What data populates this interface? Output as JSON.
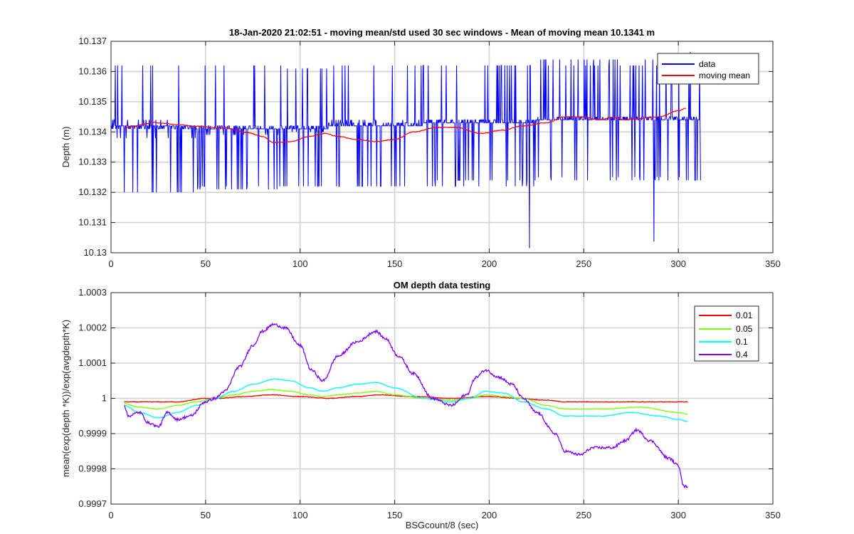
{
  "chart_data": [
    {
      "type": "line",
      "title": "18-Jan-2020 21:02:51 - moving mean/std used 30 sec windows - Mean of moving mean 10.1341 m",
      "xlabel": "",
      "ylabel": "Depth (m)",
      "xlim": [
        0,
        350
      ],
      "ylim": [
        10.13,
        10.137
      ],
      "xticks": [
        0,
        50,
        100,
        150,
        200,
        250,
        300,
        350
      ],
      "xtick_labels": [
        "0",
        "50",
        "100",
        "150",
        "200",
        "250",
        "300",
        "350"
      ],
      "yticks": [
        10.13,
        10.131,
        10.132,
        10.133,
        10.134,
        10.135,
        10.136,
        10.137
      ],
      "ytick_labels": [
        "10.13",
        "10.131",
        "10.132",
        "10.133",
        "10.134",
        "10.135",
        "10.136",
        "10.137"
      ],
      "grid": true,
      "legend_position": "top-right",
      "series": [
        {
          "name": "data",
          "color": "#0000ff",
          "style": "noisy",
          "x_range": [
            0,
            312
          ],
          "segments": [
            {
              "x": [
                0,
                22
              ],
              "levels": [
                10.1342,
                10.1341,
                10.1362,
                10.132,
                10.1344,
                10.1338
              ],
              "lo": 10.1319,
              "hi": 10.1363
            },
            {
              "x": [
                22,
                45
              ],
              "levels": [
                10.1342,
                10.1341,
                10.1362,
                10.132,
                10.1344,
                10.1338
              ],
              "lo": 10.1319,
              "hi": 10.1363
            },
            {
              "x": [
                45,
                90
              ],
              "levels": [
                10.1341,
                10.1342,
                10.1362,
                10.1321,
                10.1322,
                10.1339
              ],
              "lo": 10.1319,
              "hi": 10.1362
            },
            {
              "x": [
                90,
                115
              ],
              "levels": [
                10.1341,
                10.1342,
                10.1322,
                10.1361,
                10.134
              ],
              "lo": 10.1321,
              "hi": 10.1362
            },
            {
              "x": [
                115,
                165
              ],
              "levels": [
                10.1342,
                10.1343,
                10.1322,
                10.1362,
                10.1344
              ],
              "lo": 10.1321,
              "hi": 10.1362
            },
            {
              "x": [
                165,
                225
              ],
              "levels": [
                10.1343,
                10.1344,
                10.1322,
                10.1362,
                10.1324
              ],
              "lo": 10.1322,
              "hi": 10.1363
            },
            {
              "x": [
                225,
                312
              ],
              "levels": [
                10.1344,
                10.1345,
                10.1362,
                10.1324,
                10.1325,
                10.1364
              ],
              "lo": 10.1322,
              "hi": 10.1366
            }
          ],
          "spikes": [
            {
              "x": 221.3,
              "y": 10.13015
            },
            {
              "x": 287.1,
              "y": 10.13037
            },
            {
              "x": 306.3,
              "y": 10.13665
            }
          ]
        },
        {
          "name": "moving mean",
          "color": "#ff0000",
          "x": [
            7,
            12,
            18,
            22,
            28,
            35,
            45,
            60,
            72,
            80,
            86,
            95,
            105,
            113,
            120,
            130,
            140,
            150,
            160,
            172,
            182,
            196,
            206,
            218,
            230,
            240,
            250,
            258,
            265,
            272,
            280,
            290,
            300,
            304
          ],
          "y": [
            10.13412,
            10.13418,
            10.13426,
            10.13432,
            10.13428,
            10.13424,
            10.13419,
            10.13413,
            10.13398,
            10.13385,
            10.13365,
            10.13368,
            10.13385,
            10.13395,
            10.13385,
            10.13375,
            10.13368,
            10.13375,
            10.134,
            10.13415,
            10.13415,
            10.13395,
            10.13405,
            10.1342,
            10.1343,
            10.1345,
            10.1345,
            10.1344,
            10.13448,
            10.1344,
            10.13445,
            10.1345,
            10.1347,
            10.13478
          ]
        }
      ]
    },
    {
      "type": "line",
      "title": "OM depth data testing",
      "xlabel": "BSGcount/8 (sec)",
      "ylabel": "mean(exp(depth *K))/exp(avgdepth*K)",
      "xlim": [
        0,
        350
      ],
      "ylim": [
        0.9997,
        1.0003
      ],
      "xticks": [
        0,
        50,
        100,
        150,
        200,
        250,
        300,
        350
      ],
      "xtick_labels": [
        "0",
        "50",
        "100",
        "150",
        "200",
        "250",
        "300",
        "350"
      ],
      "yticks": [
        0.9997,
        0.9998,
        0.9999,
        1.0,
        1.0001,
        1.0002,
        1.0003
      ],
      "ytick_labels": [
        "0.9997",
        "0.9998",
        "0.9999",
        "1",
        "1.0001",
        "1.0002",
        "1.0003"
      ],
      "grid": true,
      "legend_position": "top-right",
      "series": [
        {
          "name": "0.01",
          "color": "#ff0000",
          "x": [
            7,
            20,
            35,
            50,
            57,
            70,
            85,
            100,
            115,
            130,
            142,
            160,
            180,
            200,
            215,
            230,
            240,
            260,
            280,
            300,
            305
          ],
          "y": [
            0.99999,
            0.99999,
            0.99999,
            1.0,
            1.0,
            1.000005,
            1.00001,
            1.000005,
            1.0,
            1.000005,
            1.00001,
            1.000005,
            1.0,
            1.000005,
            1.0,
            0.999995,
            0.99999,
            0.99999,
            0.99999,
            0.99999,
            0.99999
          ]
        },
        {
          "name": "0.05",
          "color": "#7fff00",
          "x": [
            7,
            15,
            25,
            35,
            45,
            55,
            65,
            75,
            85,
            95,
            105,
            112,
            120,
            130,
            140,
            150,
            165,
            180,
            190,
            198,
            208,
            218,
            230,
            240,
            260,
            280,
            300,
            305
          ],
          "y": [
            0.999985,
            0.999975,
            0.99997,
            0.99998,
            0.99999,
            1.0,
            1.00001,
            1.00002,
            1.000025,
            1.00002,
            1.00001,
            1.000005,
            1.00001,
            1.000015,
            1.00002,
            1.00001,
            1.0,
            0.999995,
            1.0,
            1.00001,
            1.000005,
            1.0,
            0.99998,
            0.99997,
            0.99997,
            0.999975,
            0.99996,
            0.999955
          ]
        },
        {
          "name": "0.1",
          "color": "#00ffff",
          "x": [
            7,
            15,
            25,
            35,
            45,
            55,
            65,
            75,
            87,
            95,
            105,
            112,
            120,
            130,
            140,
            150,
            165,
            180,
            190,
            198,
            208,
            218,
            230,
            240,
            260,
            275,
            290,
            300,
            305
          ],
          "y": [
            0.99998,
            0.99996,
            0.999945,
            0.99996,
            0.99998,
            1.0,
            1.00002,
            1.00004,
            1.000055,
            1.00005,
            1.00003,
            1.00002,
            1.00003,
            1.00004,
            1.000045,
            1.00003,
            1.0,
            0.99999,
            1.0,
            1.00002,
            1.000015,
            0.99999,
            0.99997,
            0.99995,
            0.99995,
            0.99996,
            0.99995,
            0.99994,
            0.999935
          ]
        },
        {
          "name": "0.4",
          "color": "#8000ff",
          "x": [
            7,
            9,
            15,
            20,
            25,
            30,
            35,
            42,
            50,
            55,
            60,
            68,
            75,
            80,
            86,
            92,
            100,
            106,
            112,
            120,
            130,
            140,
            145,
            152,
            160,
            170,
            180,
            188,
            193,
            198,
            205,
            212,
            218,
            225,
            235,
            240,
            248,
            255,
            265,
            272,
            278,
            285,
            295,
            300,
            303,
            305
          ],
          "y": [
            0.99998,
            0.99995,
            0.99996,
            0.99993,
            0.99992,
            0.99996,
            0.99994,
            0.99995,
            0.99999,
            1.0,
            1.00002,
            1.00009,
            1.00015,
            1.00019,
            1.00021,
            1.0002,
            1.00015,
            1.00008,
            1.00005,
            1.00012,
            1.00016,
            1.00019,
            1.00017,
            1.00012,
            1.00007,
            1.0,
            0.99998,
            1.00001,
            1.00006,
            1.00008,
            1.00006,
            1.00004,
            1.0,
            0.99996,
            0.9999,
            0.99985,
            0.99984,
            0.99986,
            0.99986,
            0.99988,
            0.99991,
            0.99988,
            0.99983,
            0.99981,
            0.99975,
            0.99975
          ]
        }
      ]
    }
  ]
}
